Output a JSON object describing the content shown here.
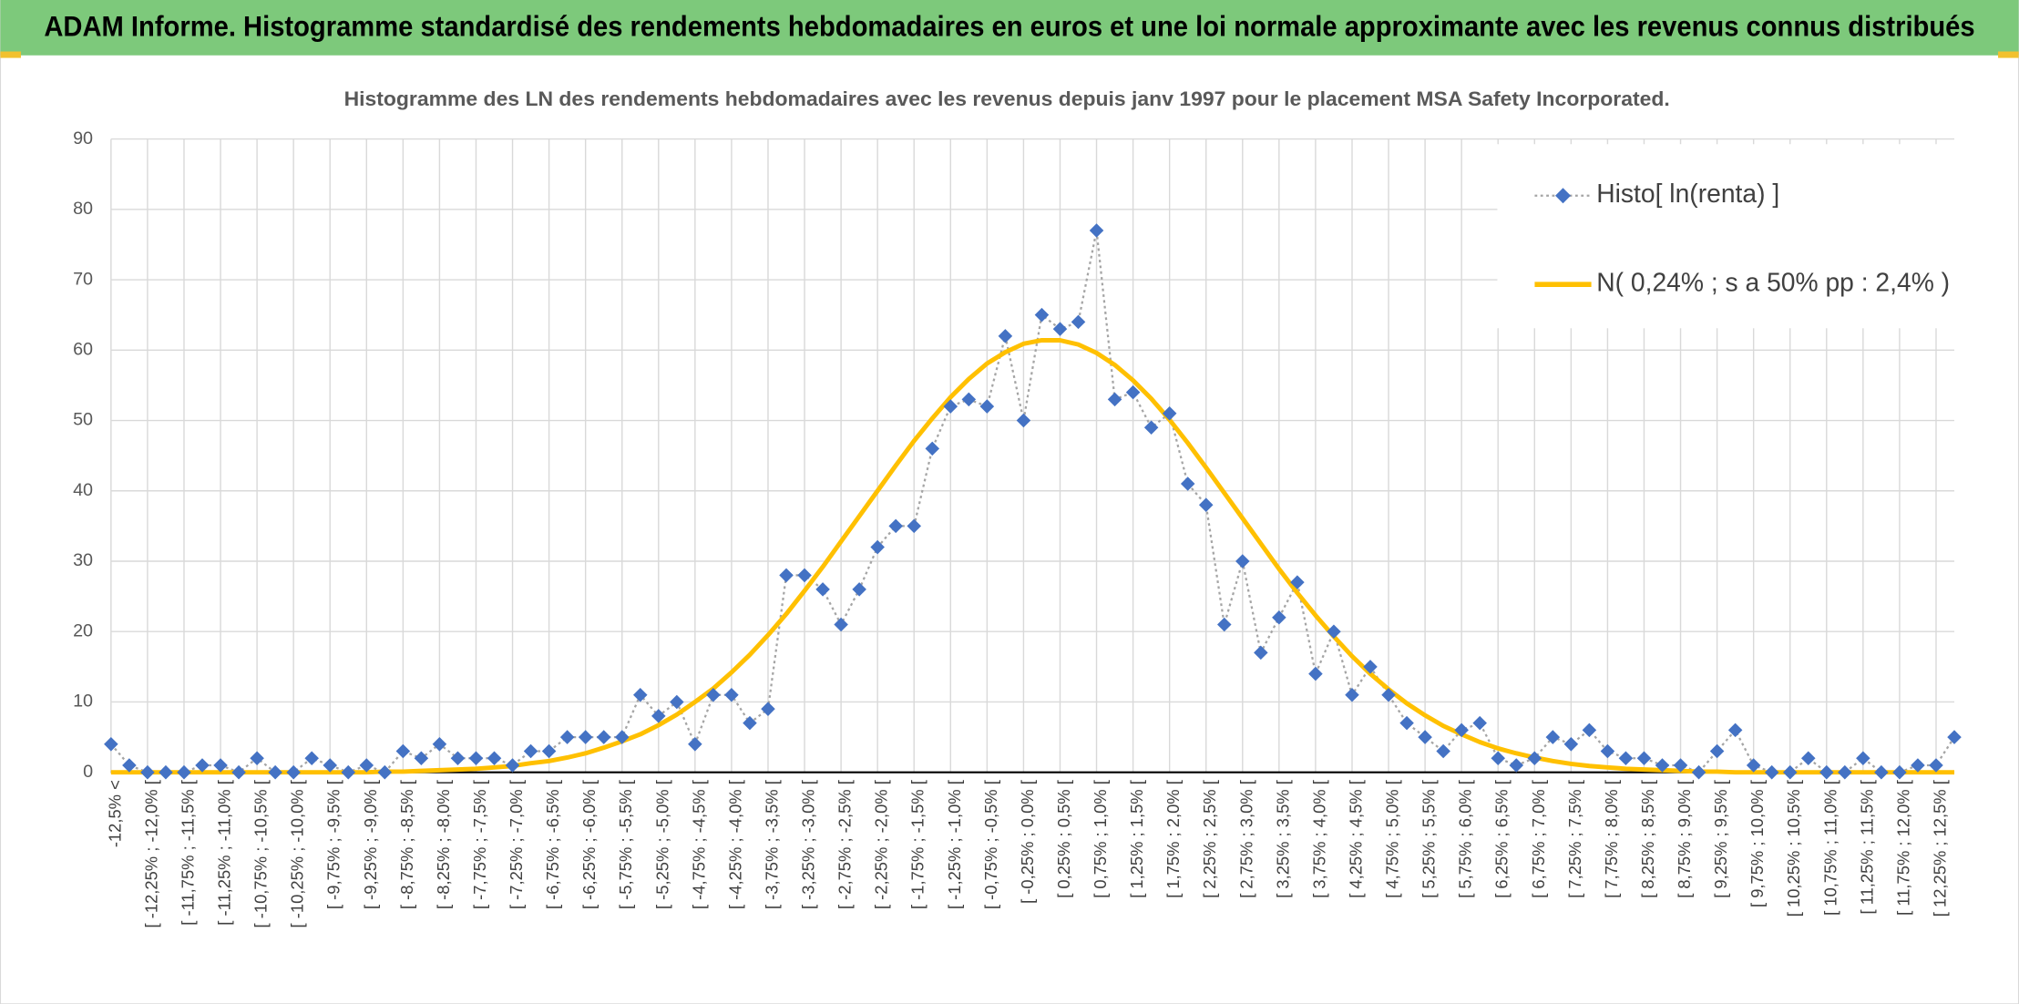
{
  "header": {
    "title": "ADAM Informe. Histogramme standardisé des rendements hebdomadaires en euros et une loi normale approximante avec les revenus connus distribués"
  },
  "chart_data": {
    "type": "line",
    "title": "Histogramme des LN des rendements hebdomadaires avec les revenus depuis janv 1997 pour le placement MSA Safety Incorporated.",
    "categories": [
      "-12,5% <",
      null,
      "[ -12,25% ; -12,0% [",
      null,
      "[ -11,75% ; -11,5% [",
      null,
      "[ -11,25% ; -11,0% [",
      null,
      "[ -10,75% ; -10,5% [",
      null,
      "[ -10,25% ; -10,0% [",
      null,
      "[ -9,75% ; -9,5% [",
      null,
      "[ -9,25% ; -9,0% [",
      null,
      "[ -8,75% ; -8,5% [",
      null,
      "[ -8,25% ; -8,0% [",
      null,
      "[ -7,75% ; -7,5% [",
      null,
      "[ -7,25% ; -7,0% [",
      null,
      "[ -6,75% ; -6,5% [",
      null,
      "[ -6,25% ; -6,0% [",
      null,
      "[ -5,75% ; -5,5% [",
      null,
      "[ -5,25% ; -5,0% [",
      null,
      "[ -4,75% ; -4,5% [",
      null,
      "[ -4,25% ; -4,0% [",
      null,
      "[ -3,75% ; -3,5% [",
      null,
      "[ -3,25% ; -3,0% [",
      null,
      "[ -2,75% ; -2,5% [",
      null,
      "[ -2,25% ; -2,0% [",
      null,
      "[ -1,75% ; -1,5% [",
      null,
      "[ -1,25% ; -1,0% [",
      null,
      "[ -0,75% ; -0,5% [",
      null,
      "[ -0,25% ; 0,0% [",
      null,
      "[ 0,25% ; 0,5% [",
      null,
      "[ 0,75% ; 1,0% [",
      null,
      "[ 1,25% ; 1,5% [",
      null,
      "[ 1,75% ; 2,0% [",
      null,
      "[ 2,25% ; 2,5% [",
      null,
      "[ 2,75% ; 3,0% [",
      null,
      "[ 3,25% ; 3,5% [",
      null,
      "[ 3,75% ; 4,0% [",
      null,
      "[ 4,25% ; 4,5% [",
      null,
      "[ 4,75% ; 5,0% [",
      null,
      "[ 5,25% ; 5,5% [",
      null,
      "[ 5,75% ; 6,0% [",
      null,
      "[ 6,25% ; 6,5% [",
      null,
      "[ 6,75% ; 7,0% [",
      null,
      "[ 7,25% ; 7,5% [",
      null,
      "[ 7,75% ; 8,0% [",
      null,
      "[ 8,25% ; 8,5% [",
      null,
      "[ 8,75% ; 9,0% [",
      null,
      "[ 9,25% ; 9,5% [",
      null,
      "[ 9,75% ; 10,0% [",
      null,
      "[ 10,25% ; 10,5% [",
      null,
      "[ 10,75% ; 11,0% [",
      null,
      "[ 11,25% ; 11,5% [",
      null,
      "[ 11,75% ; 12,0% [",
      null,
      "[ 12,25% ; 12,5% [",
      null
    ],
    "series": [
      {
        "name": "Histo[ ln(renta) ]",
        "color": "#4472c4",
        "line_color": "#a5a5a5",
        "values": [
          4,
          1,
          0,
          0,
          0,
          1,
          1,
          0,
          2,
          0,
          0,
          2,
          1,
          0,
          1,
          0,
          3,
          2,
          4,
          2,
          2,
          2,
          1,
          3,
          3,
          5,
          5,
          5,
          5,
          11,
          8,
          10,
          4,
          11,
          11,
          7,
          9,
          28,
          28,
          26,
          21,
          26,
          32,
          35,
          35,
          46,
          52,
          53,
          52,
          62,
          50,
          65,
          63,
          64,
          77,
          53,
          54,
          49,
          51,
          41,
          38,
          21,
          30,
          17,
          22,
          27,
          14,
          20,
          11,
          15,
          11,
          7,
          5,
          3,
          6,
          7,
          2,
          1,
          2,
          5,
          4,
          6,
          3,
          2,
          2,
          1,
          1,
          0,
          3,
          6,
          1,
          0,
          0,
          2,
          0,
          0,
          2,
          0,
          0,
          1,
          1,
          5
        ]
      },
      {
        "name": "N( 0,24% ; s a 50% pp : 2,4% )",
        "color": "#ffc000",
        "values": [
          0,
          0,
          0,
          0,
          0,
          0,
          0,
          0,
          0,
          0,
          0,
          0,
          0,
          0,
          0,
          0.1,
          0.1,
          0.2,
          0.3,
          0.4,
          0.5,
          0.7,
          0.9,
          1.3,
          1.6,
          2.1,
          2.7,
          3.5,
          4.4,
          5.4,
          6.7,
          8.2,
          10.0,
          11.9,
          14.2,
          16.7,
          19.5,
          22.5,
          25.8,
          29.2,
          32.8,
          36.4,
          40.0,
          43.6,
          47.1,
          50.3,
          53.3,
          55.9,
          58.1,
          59.7,
          60.9,
          61.4,
          61.4,
          60.8,
          59.6,
          57.9,
          55.7,
          53.1,
          50.1,
          46.8,
          43.3,
          39.7,
          36.1,
          32.5,
          28.9,
          25.5,
          22.3,
          19.3,
          16.5,
          14.0,
          11.8,
          9.8,
          8.1,
          6.6,
          5.4,
          4.3,
          3.4,
          2.7,
          2.1,
          1.6,
          1.2,
          0.9,
          0.7,
          0.5,
          0.4,
          0.3,
          0.2,
          0.1,
          0.1,
          0,
          0,
          0,
          0,
          0,
          0,
          0,
          0,
          0,
          0,
          0,
          0,
          0
        ]
      }
    ],
    "ylim": [
      0,
      90
    ],
    "yticks": [
      0,
      10,
      20,
      30,
      40,
      50,
      60,
      70,
      80,
      90
    ],
    "grid": true,
    "legend": "top-right"
  }
}
